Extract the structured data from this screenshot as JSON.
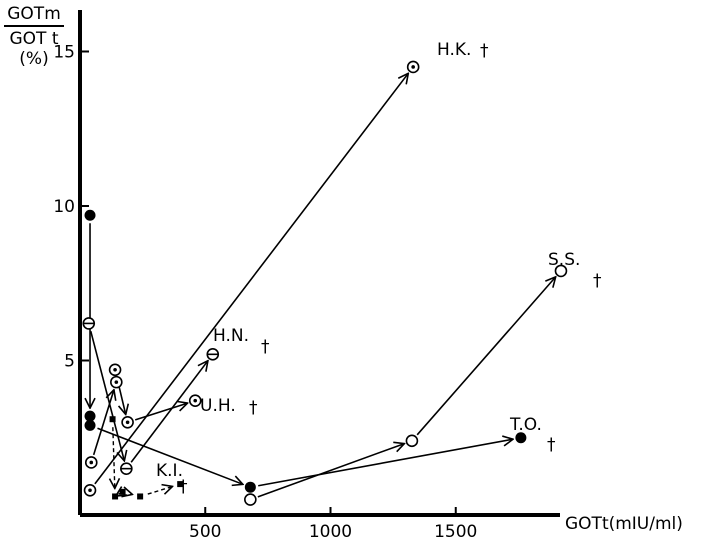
{
  "chart_data": {
    "type": "scatter",
    "title": "",
    "ylabel": {
      "numerator": "GOTm",
      "denominator": "GOT t",
      "unit": "(%)"
    },
    "xlabel": "GOTt(mIU/ml)",
    "xlim": [
      0,
      2000
    ],
    "ylim": [
      0,
      15
    ],
    "xticks": [
      {
        "value": 500,
        "label": "500"
      },
      {
        "value": 1000,
        "label": "1000"
      },
      {
        "value": 1500,
        "label": "1500"
      }
    ],
    "yticks": [
      {
        "value": 5,
        "label": "5"
      },
      {
        "value": 10,
        "label": "10"
      },
      {
        "value": 15,
        "label": "15"
      }
    ],
    "series": [
      {
        "name": "H.K.",
        "marker": "dotted-circle",
        "points": [
          {
            "x": 40,
            "y": 0.8
          },
          {
            "x": 1330,
            "y": 14.5
          }
        ]
      },
      {
        "name": "S.S.",
        "marker": "open-circle",
        "points": [
          {
            "x": 680,
            "y": 0.5
          },
          {
            "x": 1325,
            "y": 2.4
          },
          {
            "x": 1920,
            "y": 7.9
          }
        ]
      },
      {
        "name": "T.O.",
        "marker": "filled-circle",
        "points": [
          {
            "x": 40,
            "y": 2.9
          },
          {
            "x": 680,
            "y": 0.9
          },
          {
            "x": 1760,
            "y": 2.5
          }
        ]
      },
      {
        "name": "H.N.",
        "marker": "barred-circle",
        "points": [
          {
            "x": 35,
            "y": 6.2
          },
          {
            "x": 185,
            "y": 1.5
          },
          {
            "x": 530,
            "y": 5.2
          }
        ]
      },
      {
        "name": "U.H.",
        "marker": "dotted-circle",
        "points": [
          {
            "x": 140,
            "y": 4.7
          },
          {
            "x": 190,
            "y": 3.0
          },
          {
            "x": 460,
            "y": 3.7
          }
        ]
      },
      {
        "name": "",
        "marker": "dotted-circle",
        "points": [
          {
            "x": 45,
            "y": 1.7
          },
          {
            "x": 145,
            "y": 4.3
          }
        ]
      },
      {
        "name": "",
        "marker": "filled-circle",
        "points": [
          {
            "x": 40,
            "y": 9.7
          },
          {
            "x": 40,
            "y": 3.2
          }
        ]
      },
      {
        "name": "K.I.",
        "marker": "filled-square",
        "dashed": true,
        "points": [
          {
            "x": 130,
            "y": 3.1
          },
          {
            "x": 140,
            "y": 0.6
          },
          {
            "x": 170,
            "y": 0.75
          },
          {
            "x": 240,
            "y": 0.6
          },
          {
            "x": 400,
            "y": 1.0
          }
        ]
      }
    ],
    "annotations": [
      {
        "text": "H.K.",
        "dagger": "†"
      },
      {
        "text": "S.S.",
        "dagger": "†"
      },
      {
        "text": "T.O.",
        "dagger": "†"
      },
      {
        "text": "H.N.",
        "dagger": "†"
      },
      {
        "text": "U.H.",
        "dagger": "†"
      },
      {
        "text": "K.I.",
        "dagger": "†"
      }
    ],
    "grid": false,
    "legend": "none"
  }
}
